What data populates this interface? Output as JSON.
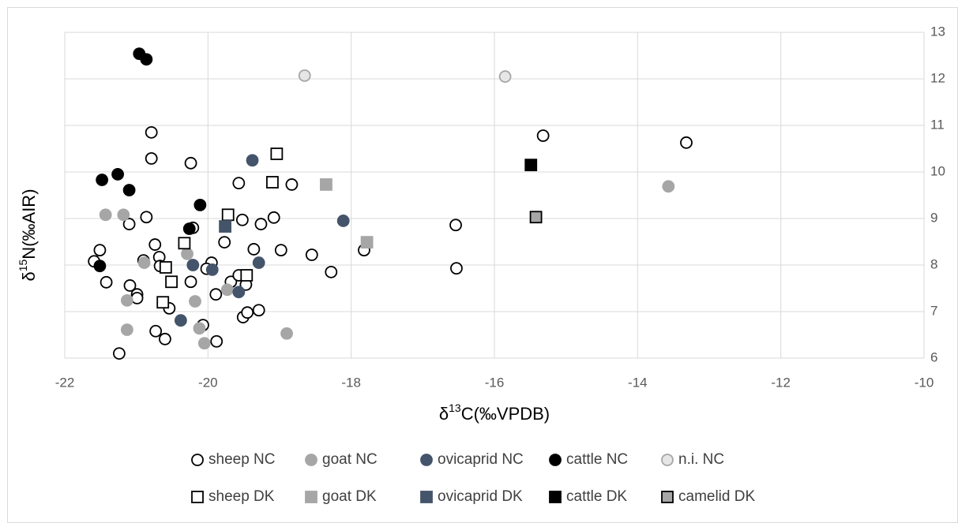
{
  "chart_data": {
    "type": "scatter",
    "x_label": [
      "δ",
      "13",
      "C(‰VPDB)"
    ],
    "y_label": [
      "δ",
      "15",
      "N(‰AIR)"
    ],
    "xlim": [
      -22,
      -10
    ],
    "xticks": [
      -22,
      -20,
      -18,
      -16,
      -14,
      -12,
      -10
    ],
    "ylim": [
      6,
      13
    ],
    "yticks": [
      6,
      7,
      8,
      9,
      10,
      11,
      12,
      13
    ],
    "grid": true,
    "y_axis_side": "right",
    "legend": "bottom",
    "series": [
      {
        "name": "sheep NC",
        "marker": "circle",
        "color": "#ffffff",
        "edgecolor": "#000000",
        "x": [
          -20.79,
          -20.79,
          -20.24,
          -19.57,
          -18.83,
          -20.86,
          -21.1,
          -19.52,
          -19.08,
          -19.26,
          -20.74,
          -21.51,
          -19.77,
          -19.36,
          -18.98,
          -18.55,
          -17.82,
          -16.54,
          -16.53,
          -15.32,
          -13.32,
          -21.59,
          -20.9,
          -20.68,
          -20.67,
          -19.95,
          -20.02,
          -21.42,
          -21.09,
          -20.99,
          -20.99,
          -20.24,
          -19.68,
          -19.57,
          -19.47,
          -19.89,
          -18.28,
          -20.54,
          -20.73,
          -20.6,
          -20.07,
          -19.88,
          -19.51,
          -19.45,
          -19.29,
          -21.24,
          -20.21
        ],
        "values": [
          10.85,
          10.29,
          10.19,
          9.76,
          9.73,
          9.03,
          8.88,
          8.97,
          9.02,
          8.88,
          8.44,
          8.32,
          8.49,
          8.34,
          8.32,
          8.22,
          8.32,
          8.86,
          7.93,
          10.78,
          10.63,
          8.08,
          8.1,
          8.17,
          7.98,
          8.05,
          7.92,
          7.63,
          7.56,
          7.37,
          7.29,
          7.64,
          7.64,
          7.78,
          7.58,
          7.37,
          7.85,
          7.07,
          6.58,
          6.41,
          6.71,
          6.36,
          6.88,
          6.98,
          7.03,
          6.1,
          8.8
        ]
      },
      {
        "name": "goat NC",
        "marker": "circle",
        "color": "#a6a6a6",
        "edgecolor": "#a6a6a6",
        "x": [
          -21.43,
          -21.18,
          -20.89,
          -20.29,
          -21.13,
          -20.18,
          -19.73,
          -21.13,
          -20.12,
          -20.05,
          -18.9,
          -13.57
        ],
        "values": [
          9.08,
          9.08,
          8.05,
          8.24,
          7.24,
          7.22,
          7.47,
          6.61,
          6.64,
          6.32,
          6.53,
          9.69
        ]
      },
      {
        "name": "ovicaprid NC",
        "marker": "circle",
        "color": "#44546a",
        "edgecolor": "#44546a",
        "x": [
          -19.38,
          -18.11,
          -20.21,
          -19.94,
          -19.29,
          -19.57,
          -20.38
        ],
        "values": [
          10.25,
          8.95,
          8.0,
          7.9,
          8.05,
          7.42,
          6.81
        ]
      },
      {
        "name": "cattle NC",
        "marker": "circle",
        "color": "#000000",
        "edgecolor": "#000000",
        "x": [
          -20.96,
          -20.86,
          -21.48,
          -21.26,
          -21.1,
          -20.11,
          -20.26,
          -21.51
        ],
        "values": [
          12.54,
          12.42,
          9.83,
          9.95,
          9.61,
          9.29,
          8.78,
          7.98
        ]
      },
      {
        "name": "n.i. NC",
        "marker": "circle",
        "color": "#e7e6e6",
        "edgecolor": "#a6a6a6",
        "x": [
          -18.65,
          -15.85
        ],
        "values": [
          12.07,
          12.05
        ]
      },
      {
        "name": "sheep DK",
        "marker": "square",
        "color": "#ffffff",
        "edgecolor": "#000000",
        "x": [
          -19.04,
          -19.1,
          -19.72,
          -20.33,
          -20.59,
          -20.51,
          -19.46,
          -20.63
        ],
        "values": [
          10.39,
          9.78,
          9.08,
          8.47,
          7.95,
          7.64,
          7.78,
          7.2
        ]
      },
      {
        "name": "goat DK",
        "marker": "square",
        "color": "#a6a6a6",
        "edgecolor": "#a6a6a6",
        "x": [
          -18.35,
          -17.78
        ],
        "values": [
          9.73,
          8.49
        ]
      },
      {
        "name": "ovicaprid DK",
        "marker": "square",
        "color": "#44546a",
        "edgecolor": "#44546a",
        "x": [
          -19.76
        ],
        "values": [
          8.83
        ]
      },
      {
        "name": "cattle DK",
        "marker": "square",
        "color": "#000000",
        "edgecolor": "#000000",
        "x": [
          -15.49
        ],
        "values": [
          10.15
        ]
      },
      {
        "name": "camelid DK",
        "marker": "square",
        "color": "#a6a6a6",
        "edgecolor": "#000000",
        "x": [
          -15.42
        ],
        "values": [
          9.03
        ]
      }
    ]
  }
}
